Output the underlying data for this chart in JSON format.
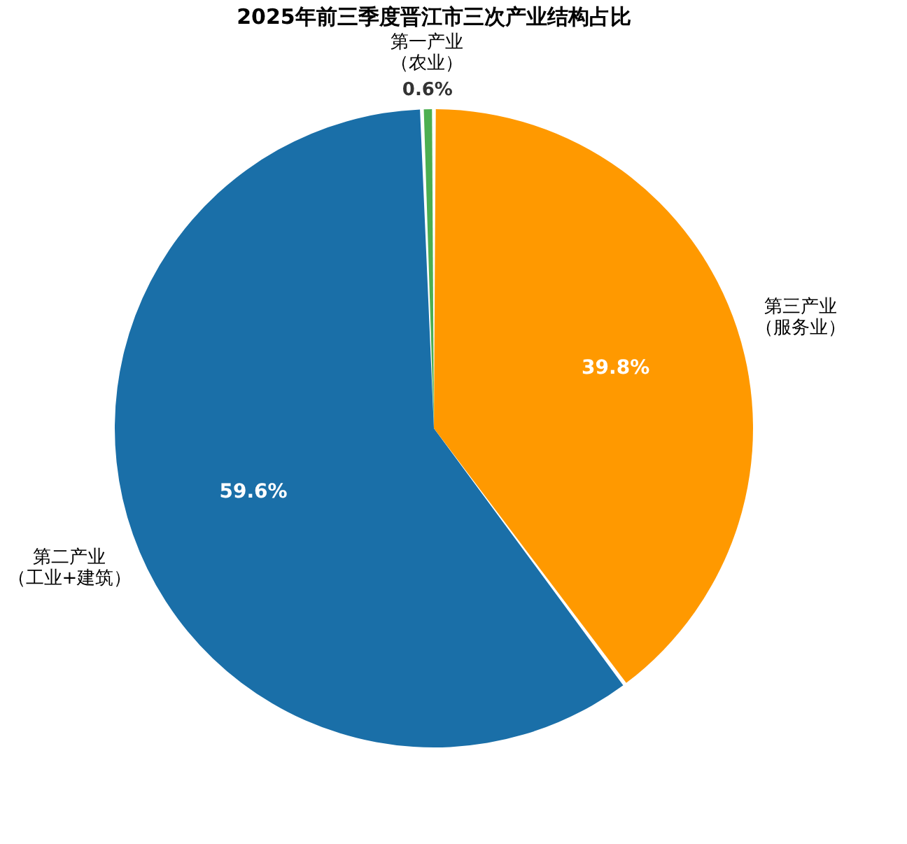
{
  "chart_data": {
    "type": "pie",
    "title": "2025年前三季度晋江市三次产业结构占比",
    "categories": [
      "第一产业（农业）",
      "第二产业（工业+建筑）",
      "第三产业（服务业）"
    ],
    "values": [
      0.6,
      59.6,
      39.8
    ],
    "colors": [
      "#4caf50",
      "#1a6fa8",
      "#ff9900"
    ],
    "value_labels": [
      "0.6%",
      "59.6%",
      "39.8%"
    ],
    "legend": false
  }
}
